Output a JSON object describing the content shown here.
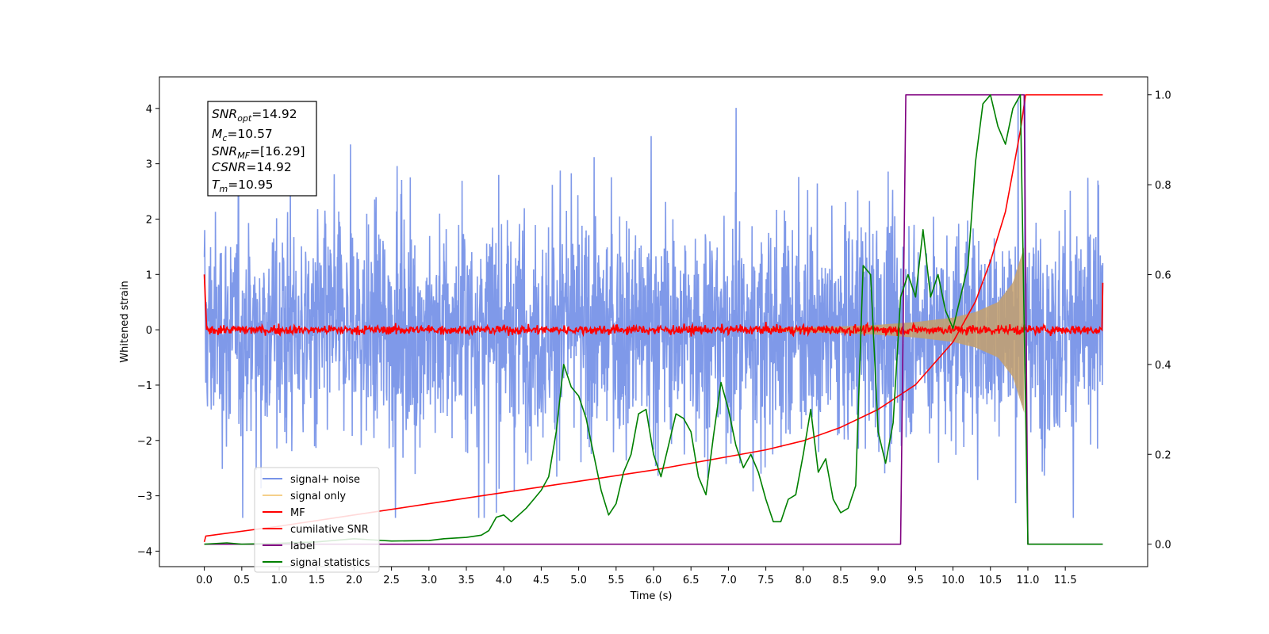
{
  "chart_data": {
    "type": "line",
    "xlabel": "Time (s)",
    "ylabel": "Whitened strain",
    "xlim": [
      -0.6,
      12.6
    ],
    "ylim_left": [
      -4.28,
      4.57
    ],
    "ylim_right": [
      -0.05,
      1.04
    ],
    "x_ticks": [
      "0.0",
      "0.5",
      "1.0",
      "1.5",
      "2.0",
      "2.5",
      "3.0",
      "3.5",
      "4.0",
      "4.5",
      "5.0",
      "5.5",
      "6.0",
      "6.5",
      "7.0",
      "7.5",
      "8.0",
      "8.5",
      "9.0",
      "9.5",
      "10.0",
      "10.5",
      "11.0",
      "11.5"
    ],
    "y_ticks_left": [
      "4",
      "3",
      "2",
      "1",
      "0",
      "−1",
      "−2",
      "−3",
      "−4"
    ],
    "y_ticks_right": [
      "1.0",
      "0.8",
      "0.6",
      "0.4",
      "0.2",
      "0.0"
    ],
    "annotation": {
      "snr_opt": "=14.92",
      "mc": "=10.57",
      "snr_mf": "=[16.29]",
      "csnr": "=14.92",
      "tm": "=10.95"
    },
    "legend": {
      "position": "lower-left",
      "entries": [
        {
          "label": "signal+ noise",
          "color": "#7893e8"
        },
        {
          "label": "signal only",
          "color": "#f5d08a"
        },
        {
          "label": "MF",
          "color": "#ff0000"
        },
        {
          "label": "cumilative SNR",
          "color": "#ff0000"
        },
        {
          "label": "label",
          "color": "#800080"
        },
        {
          "label": "signal statistics",
          "color": "#008000"
        }
      ]
    },
    "series": [
      {
        "name": "signal+ noise",
        "axis": "left",
        "color": "#7893e8",
        "noise_amplitude_typical": 1.6,
        "noise_amplitude_peak": 3.4,
        "x_range": [
          0.0,
          12.0
        ]
      },
      {
        "name": "signal only",
        "axis": "left",
        "color": "#c4a06c",
        "chirp_start": 7.5,
        "merger_time": 10.95,
        "envelope": {
          "t": [
            7.5,
            8.5,
            9.0,
            9.5,
            10.0,
            10.3,
            10.6,
            10.8,
            10.95
          ],
          "amp": [
            0.03,
            0.06,
            0.09,
            0.14,
            0.22,
            0.32,
            0.5,
            0.85,
            1.5
          ]
        }
      },
      {
        "name": "MF",
        "axis": "left",
        "color": "#ff0000",
        "start_value": 1.0,
        "end_value": 0.85,
        "typical_level": 0.0,
        "jitter": 0.07
      },
      {
        "name": "cumilative SNR",
        "axis": "right",
        "color": "#ff0000",
        "t": [
          0.0,
          0.02,
          1.0,
          2.0,
          3.0,
          4.0,
          5.0,
          6.0,
          7.0,
          7.5,
          8.0,
          8.5,
          9.0,
          9.5,
          10.0,
          10.3,
          10.5,
          10.7,
          10.9,
          10.97,
          11.0,
          12.0
        ],
        "v": [
          0.005,
          0.018,
          0.04,
          0.065,
          0.09,
          0.115,
          0.14,
          0.165,
          0.195,
          0.21,
          0.23,
          0.26,
          0.3,
          0.355,
          0.45,
          0.54,
          0.63,
          0.74,
          0.92,
          1.0,
          1.0,
          1.0
        ]
      },
      {
        "name": "label",
        "axis": "right",
        "color": "#800080",
        "t": [
          0.0,
          9.3,
          9.37,
          10.95,
          11.0,
          12.0
        ],
        "v": [
          0.0,
          0.0,
          1.0,
          1.0,
          0.0,
          0.0
        ]
      },
      {
        "name": "signal statistics",
        "axis": "right",
        "color": "#008000",
        "t": [
          0.0,
          0.3,
          0.5,
          1.0,
          1.5,
          2.0,
          2.2,
          2.5,
          3.0,
          3.2,
          3.5,
          3.7,
          3.8,
          3.9,
          4.0,
          4.1,
          4.2,
          4.3,
          4.4,
          4.5,
          4.6,
          4.7,
          4.8,
          4.9,
          5.0,
          5.1,
          5.2,
          5.3,
          5.4,
          5.5,
          5.6,
          5.7,
          5.8,
          5.9,
          6.0,
          6.1,
          6.2,
          6.3,
          6.4,
          6.5,
          6.6,
          6.7,
          6.8,
          6.9,
          7.0,
          7.1,
          7.2,
          7.3,
          7.4,
          7.5,
          7.6,
          7.7,
          7.8,
          7.9,
          8.0,
          8.1,
          8.2,
          8.3,
          8.4,
          8.5,
          8.6,
          8.7,
          8.8,
          8.9,
          9.0,
          9.1,
          9.2,
          9.3,
          9.4,
          9.5,
          9.6,
          9.7,
          9.8,
          9.9,
          10.0,
          10.1,
          10.2,
          10.3,
          10.4,
          10.5,
          10.6,
          10.7,
          10.8,
          10.9,
          11.0,
          11.5,
          12.0
        ],
        "v": [
          0.0,
          0.003,
          0.0,
          0.002,
          0.005,
          0.012,
          0.01,
          0.007,
          0.008,
          0.012,
          0.015,
          0.02,
          0.03,
          0.06,
          0.065,
          0.05,
          0.065,
          0.08,
          0.1,
          0.12,
          0.15,
          0.25,
          0.4,
          0.35,
          0.33,
          0.28,
          0.2,
          0.12,
          0.065,
          0.09,
          0.16,
          0.2,
          0.29,
          0.3,
          0.2,
          0.15,
          0.22,
          0.29,
          0.28,
          0.25,
          0.15,
          0.11,
          0.24,
          0.36,
          0.3,
          0.22,
          0.17,
          0.2,
          0.16,
          0.1,
          0.05,
          0.05,
          0.1,
          0.11,
          0.2,
          0.3,
          0.16,
          0.19,
          0.1,
          0.07,
          0.08,
          0.13,
          0.62,
          0.6,
          0.25,
          0.18,
          0.27,
          0.55,
          0.6,
          0.55,
          0.7,
          0.55,
          0.6,
          0.52,
          0.48,
          0.55,
          0.62,
          0.85,
          0.98,
          1.0,
          0.93,
          0.89,
          0.97,
          1.0,
          0.0,
          0.0,
          0.0
        ]
      }
    ]
  }
}
